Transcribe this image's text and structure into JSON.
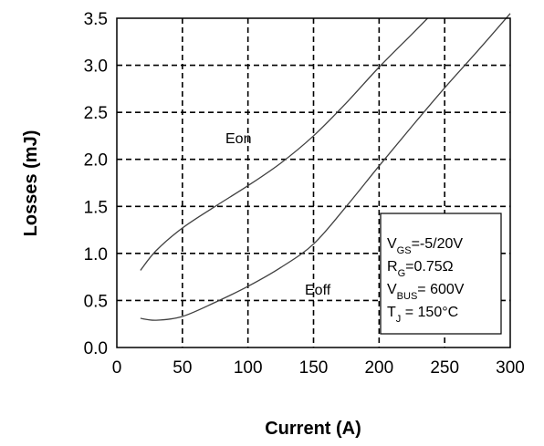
{
  "chart_data": {
    "type": "line",
    "title": "",
    "xlabel": "Current (A)",
    "ylabel": "Losses (mJ)",
    "xlim": [
      0,
      300
    ],
    "ylim": [
      0,
      3.5
    ],
    "xticks": [
      "0",
      "50",
      "100",
      "150",
      "200",
      "250",
      "300"
    ],
    "yticks": [
      "0.0",
      "0.5",
      "1.0",
      "1.5",
      "2.0",
      "2.5",
      "3.0",
      "3.5"
    ],
    "grid": true,
    "series": [
      {
        "name": "Eon",
        "x": [
          18,
          30,
          50,
          75,
          100,
          125,
          150,
          175,
          200,
          225,
          237
        ],
        "y": [
          0.82,
          1.03,
          1.27,
          1.5,
          1.72,
          1.96,
          2.25,
          2.6,
          2.98,
          3.33,
          3.5
        ]
      },
      {
        "name": "Eoff",
        "x": [
          18,
          30,
          50,
          75,
          100,
          125,
          150,
          175,
          200,
          225,
          250,
          275,
          300
        ],
        "y": [
          0.31,
          0.29,
          0.33,
          0.48,
          0.65,
          0.85,
          1.1,
          1.5,
          1.93,
          2.35,
          2.76,
          3.15,
          3.55
        ]
      }
    ],
    "annotations": {
      "conditions": [
        {
          "main": "V",
          "sub": "GS",
          "rest": "=-5/20V"
        },
        {
          "main": "R",
          "sub": "G",
          "rest": "=0.75Ω"
        },
        {
          "main": "V",
          "sub": "BUS",
          "rest": "= 600V"
        },
        {
          "main": "T",
          "sub": "J",
          "rest": " = 150°C"
        }
      ]
    }
  }
}
